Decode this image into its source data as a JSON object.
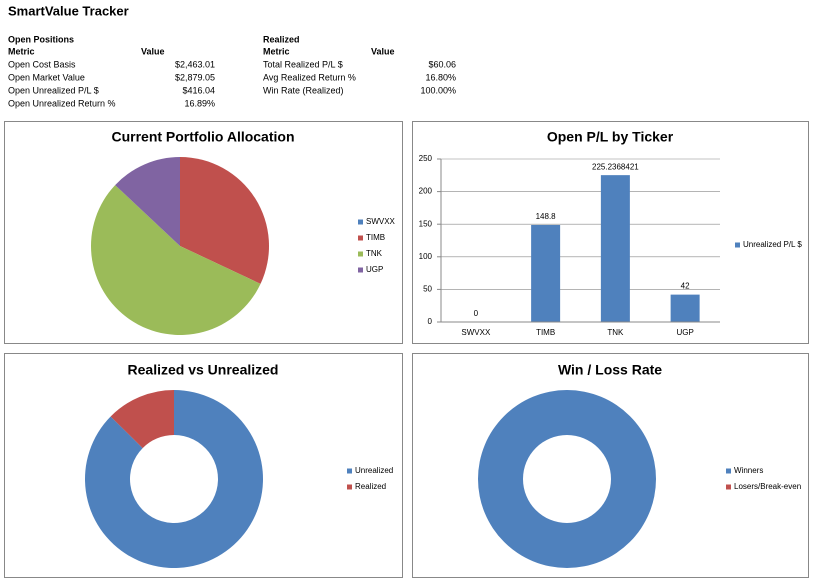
{
  "header": {
    "title": "SmartValue Tracker"
  },
  "tables": [
    {
      "title": "Open Positions",
      "columns": [
        "Metric",
        "Value"
      ],
      "rows": [
        [
          "Open Cost Basis",
          "$2,463.01"
        ],
        [
          "Open Market Value",
          "$2,879.05"
        ],
        [
          "Open Unrealized P/L $",
          "$416.04"
        ],
        [
          "Open Unrealized Return %",
          "16.89%"
        ]
      ]
    },
    {
      "title": "Realized",
      "columns": [
        "Metric",
        "Value"
      ],
      "rows": [
        [
          "Total Realized P/L $",
          "$60.06"
        ],
        [
          "Avg Realized Return %",
          "16.80%"
        ],
        [
          "Win Rate (Realized)",
          "100.00%"
        ]
      ]
    }
  ],
  "chart_data": [
    {
      "type": "pie",
      "title": "Current Portfolio Allocation",
      "categories": [
        "SWVXX",
        "TIMB",
        "TNK",
        "UGP"
      ],
      "values": [
        0,
        32,
        55,
        13
      ],
      "colors": [
        "#4f81bd",
        "#c0504d",
        "#9bbb59",
        "#8064a2"
      ]
    },
    {
      "type": "bar",
      "title": "Open P/L by Ticker",
      "categories": [
        "SWVXX",
        "TIMB",
        "TNK",
        "UGP"
      ],
      "series": [
        {
          "name": "Unrealized P/L $",
          "color": "#4f81bd",
          "values": [
            0,
            148.8,
            225.2368421,
            42
          ]
        }
      ],
      "ylim": [
        0,
        250
      ],
      "yticks": [
        0,
        50,
        100,
        150,
        200,
        250
      ],
      "grid": true
    },
    {
      "type": "donut",
      "title": "Realized vs Unrealized",
      "categories": [
        "Unrealized",
        "Realized"
      ],
      "values": [
        416.04,
        60.06
      ],
      "colors": [
        "#4f81bd",
        "#c0504d"
      ]
    },
    {
      "type": "donut",
      "title": "Win / Loss Rate",
      "categories": [
        "Winners",
        "Losers/Break-even"
      ],
      "values": [
        100,
        0
      ],
      "colors": [
        "#4f81bd",
        "#c0504d"
      ]
    }
  ]
}
